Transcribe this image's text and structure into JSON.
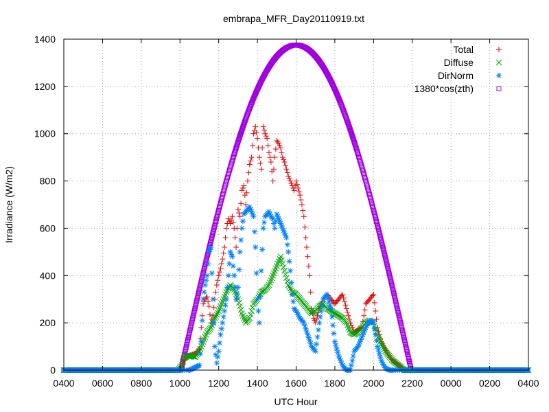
{
  "chart_data": {
    "type": "scatter",
    "title": "embrapa_MFR_Day20110919.txt",
    "xlabel": "UTC Hour",
    "ylabel": "Irradiance (W/m2)",
    "xlim": [
      4,
      28
    ],
    "ylim": [
      0,
      1400
    ],
    "x_tick_labels": [
      "0400",
      "0600",
      "0800",
      "1000",
      "1200",
      "1400",
      "1600",
      "1800",
      "2000",
      "2200",
      "0000",
      "0200",
      "0400"
    ],
    "y_tick_labels": [
      "0",
      "200",
      "400",
      "600",
      "800",
      "1000",
      "1200",
      "1400"
    ],
    "grid": true,
    "legend_position": "top-right",
    "series": [
      {
        "name": "Total",
        "marker": "plus",
        "color": "#e00000",
        "points": [
          [
            4,
            0
          ],
          [
            6,
            0
          ],
          [
            8,
            0
          ],
          [
            9.9,
            0
          ],
          [
            10.1,
            15
          ],
          [
            10.2,
            40
          ],
          [
            10.4,
            60
          ],
          [
            10.6,
            65
          ],
          [
            10.8,
            70
          ],
          [
            11,
            90
          ],
          [
            11.1,
            180
          ],
          [
            11.2,
            280
          ],
          [
            11.3,
            300
          ],
          [
            11.4,
            310
          ],
          [
            11.5,
            270
          ],
          [
            11.6,
            200
          ],
          [
            11.7,
            230
          ],
          [
            11.8,
            300
          ],
          [
            11.9,
            360
          ],
          [
            12,
            400
          ],
          [
            12.1,
            430
          ],
          [
            12.2,
            470
          ],
          [
            12.3,
            520
          ],
          [
            12.4,
            600
          ],
          [
            12.5,
            640
          ],
          [
            12.6,
            620
          ],
          [
            12.7,
            650
          ],
          [
            12.8,
            600
          ],
          [
            12.9,
            520
          ],
          [
            13,
            680
          ],
          [
            13.1,
            650
          ],
          [
            13.2,
            760
          ],
          [
            13.3,
            780
          ],
          [
            13.4,
            700
          ],
          [
            13.5,
            800
          ],
          [
            13.6,
            870
          ],
          [
            13.7,
            900
          ],
          [
            13.8,
            1000
          ],
          [
            13.9,
            1030
          ],
          [
            14,
            980
          ],
          [
            14.1,
            900
          ],
          [
            14.2,
            850
          ],
          [
            14.3,
            1030
          ],
          [
            14.4,
            1000
          ],
          [
            14.5,
            980
          ],
          [
            14.6,
            920
          ],
          [
            14.7,
            880
          ],
          [
            14.8,
            800
          ],
          [
            14.9,
            900
          ],
          [
            15,
            970
          ],
          [
            15.1,
            960
          ],
          [
            15.2,
            940
          ],
          [
            15.3,
            900
          ],
          [
            15.4,
            880
          ],
          [
            15.5,
            850
          ],
          [
            15.6,
            820
          ],
          [
            15.7,
            800
          ],
          [
            15.8,
            780
          ],
          [
            15.9,
            760
          ],
          [
            16,
            800
          ],
          [
            16.1,
            770
          ],
          [
            16.2,
            740
          ],
          [
            16.3,
            700
          ],
          [
            16.4,
            650
          ],
          [
            16.5,
            560
          ],
          [
            16.6,
            480
          ],
          [
            16.7,
            400
          ],
          [
            16.8,
            260
          ],
          [
            16.9,
            220
          ],
          [
            17,
            200
          ],
          [
            17.2,
            260
          ],
          [
            17.4,
            300
          ],
          [
            17.6,
            320
          ],
          [
            17.8,
            300
          ],
          [
            18,
            280
          ],
          [
            18.2,
            300
          ],
          [
            18.4,
            320
          ],
          [
            18.6,
            260
          ],
          [
            18.8,
            200
          ],
          [
            19,
            160
          ],
          [
            19.2,
            170
          ],
          [
            19.4,
            180
          ],
          [
            19.6,
            280
          ],
          [
            19.8,
            300
          ],
          [
            20,
            320
          ],
          [
            20.2,
            180
          ],
          [
            20.4,
            120
          ],
          [
            20.6,
            90
          ],
          [
            20.8,
            60
          ],
          [
            21,
            40
          ],
          [
            21.3,
            20
          ],
          [
            21.6,
            0
          ],
          [
            22,
            0
          ],
          [
            24,
            0
          ],
          [
            26,
            0
          ],
          [
            28,
            0
          ]
        ]
      },
      {
        "name": "Diffuse",
        "marker": "cross",
        "color": "#00a000",
        "points": [
          [
            4,
            0
          ],
          [
            6,
            0
          ],
          [
            8,
            0
          ],
          [
            9.9,
            0
          ],
          [
            10.1,
            20
          ],
          [
            10.2,
            50
          ],
          [
            10.4,
            60
          ],
          [
            10.6,
            60
          ],
          [
            10.8,
            55
          ],
          [
            11,
            80
          ],
          [
            11.2,
            120
          ],
          [
            11.4,
            160
          ],
          [
            11.6,
            180
          ],
          [
            11.8,
            220
          ],
          [
            12,
            250
          ],
          [
            12.2,
            290
          ],
          [
            12.4,
            330
          ],
          [
            12.6,
            360
          ],
          [
            12.8,
            340
          ],
          [
            13,
            300
          ],
          [
            13.2,
            240
          ],
          [
            13.4,
            200
          ],
          [
            13.6,
            220
          ],
          [
            13.8,
            280
          ],
          [
            14,
            300
          ],
          [
            14.2,
            330
          ],
          [
            14.4,
            340
          ],
          [
            14.6,
            360
          ],
          [
            14.8,
            400
          ],
          [
            15,
            440
          ],
          [
            15.2,
            480
          ],
          [
            15.4,
            420
          ],
          [
            15.6,
            360
          ],
          [
            15.8,
            330
          ],
          [
            16,
            320
          ],
          [
            16.2,
            300
          ],
          [
            16.4,
            280
          ],
          [
            16.6,
            260
          ],
          [
            16.8,
            240
          ],
          [
            17,
            250
          ],
          [
            17.2,
            270
          ],
          [
            17.4,
            280
          ],
          [
            17.6,
            260
          ],
          [
            17.8,
            250
          ],
          [
            18,
            240
          ],
          [
            18.2,
            230
          ],
          [
            18.4,
            220
          ],
          [
            18.6,
            200
          ],
          [
            18.8,
            160
          ],
          [
            19,
            150
          ],
          [
            19.2,
            160
          ],
          [
            19.4,
            180
          ],
          [
            19.6,
            200
          ],
          [
            19.8,
            210
          ],
          [
            20,
            200
          ],
          [
            20.2,
            150
          ],
          [
            20.4,
            110
          ],
          [
            20.6,
            80
          ],
          [
            20.8,
            60
          ],
          [
            21,
            40
          ],
          [
            21.3,
            20
          ],
          [
            21.6,
            0
          ],
          [
            22,
            0
          ],
          [
            24,
            0
          ],
          [
            26,
            0
          ],
          [
            28,
            0
          ]
        ]
      },
      {
        "name": "DirNorm",
        "marker": "star",
        "color": "#0080ff",
        "points": [
          [
            4,
            0
          ],
          [
            6,
            0
          ],
          [
            8,
            0
          ],
          [
            9.9,
            0
          ],
          [
            10.5,
            0
          ],
          [
            11,
            20
          ],
          [
            11.1,
            120
          ],
          [
            11.2,
            300
          ],
          [
            11.3,
            360
          ],
          [
            11.4,
            400
          ],
          [
            11.5,
            500
          ],
          [
            11.6,
            520
          ],
          [
            11.7,
            300
          ],
          [
            11.8,
            100
          ],
          [
            11.9,
            30
          ],
          [
            12,
            80
          ],
          [
            12.1,
            150
          ],
          [
            12.2,
            200
          ],
          [
            12.3,
            250
          ],
          [
            12.4,
            300
          ],
          [
            12.5,
            400
          ],
          [
            12.6,
            500
          ],
          [
            12.7,
            480
          ],
          [
            12.8,
            400
          ],
          [
            12.9,
            300
          ],
          [
            13,
            350
          ],
          [
            13.1,
            500
          ],
          [
            13.2,
            600
          ],
          [
            13.3,
            660
          ],
          [
            13.4,
            670
          ],
          [
            13.5,
            680
          ],
          [
            13.6,
            690
          ],
          [
            13.7,
            670
          ],
          [
            13.8,
            650
          ],
          [
            13.9,
            520
          ],
          [
            14,
            300
          ],
          [
            14.1,
            200
          ],
          [
            14.2,
            420
          ],
          [
            14.3,
            600
          ],
          [
            14.4,
            650
          ],
          [
            14.5,
            660
          ],
          [
            14.6,
            670
          ],
          [
            14.7,
            650
          ],
          [
            14.8,
            640
          ],
          [
            14.9,
            600
          ],
          [
            15,
            660
          ],
          [
            15.1,
            640
          ],
          [
            15.2,
            620
          ],
          [
            15.3,
            600
          ],
          [
            15.4,
            580
          ],
          [
            15.5,
            560
          ],
          [
            15.6,
            500
          ],
          [
            15.7,
            420
          ],
          [
            15.8,
            320
          ],
          [
            15.9,
            260
          ],
          [
            16,
            250
          ],
          [
            16.2,
            220
          ],
          [
            16.4,
            200
          ],
          [
            16.6,
            150
          ],
          [
            16.8,
            100
          ],
          [
            17,
            80
          ],
          [
            17.2,
            200
          ],
          [
            17.4,
            300
          ],
          [
            17.6,
            320
          ],
          [
            17.8,
            260
          ],
          [
            18,
            120
          ],
          [
            18.2,
            60
          ],
          [
            18.4,
            20
          ],
          [
            18.6,
            0
          ],
          [
            18.8,
            0
          ],
          [
            19,
            80
          ],
          [
            19.2,
            100
          ],
          [
            19.4,
            140
          ],
          [
            19.6,
            180
          ],
          [
            19.8,
            210
          ],
          [
            20,
            200
          ],
          [
            20.2,
            100
          ],
          [
            20.4,
            40
          ],
          [
            20.6,
            10
          ],
          [
            20.8,
            0
          ],
          [
            21,
            0
          ],
          [
            22,
            0
          ],
          [
            24,
            0
          ],
          [
            26,
            0
          ],
          [
            28,
            0
          ]
        ]
      },
      {
        "name": "1380*cos(zth)",
        "marker": "square",
        "color": "#a000e0",
        "curve": {
          "x_start": 10.05,
          "x_peak": 16,
          "x_end": 21.95,
          "peak": 1375
        }
      }
    ]
  }
}
